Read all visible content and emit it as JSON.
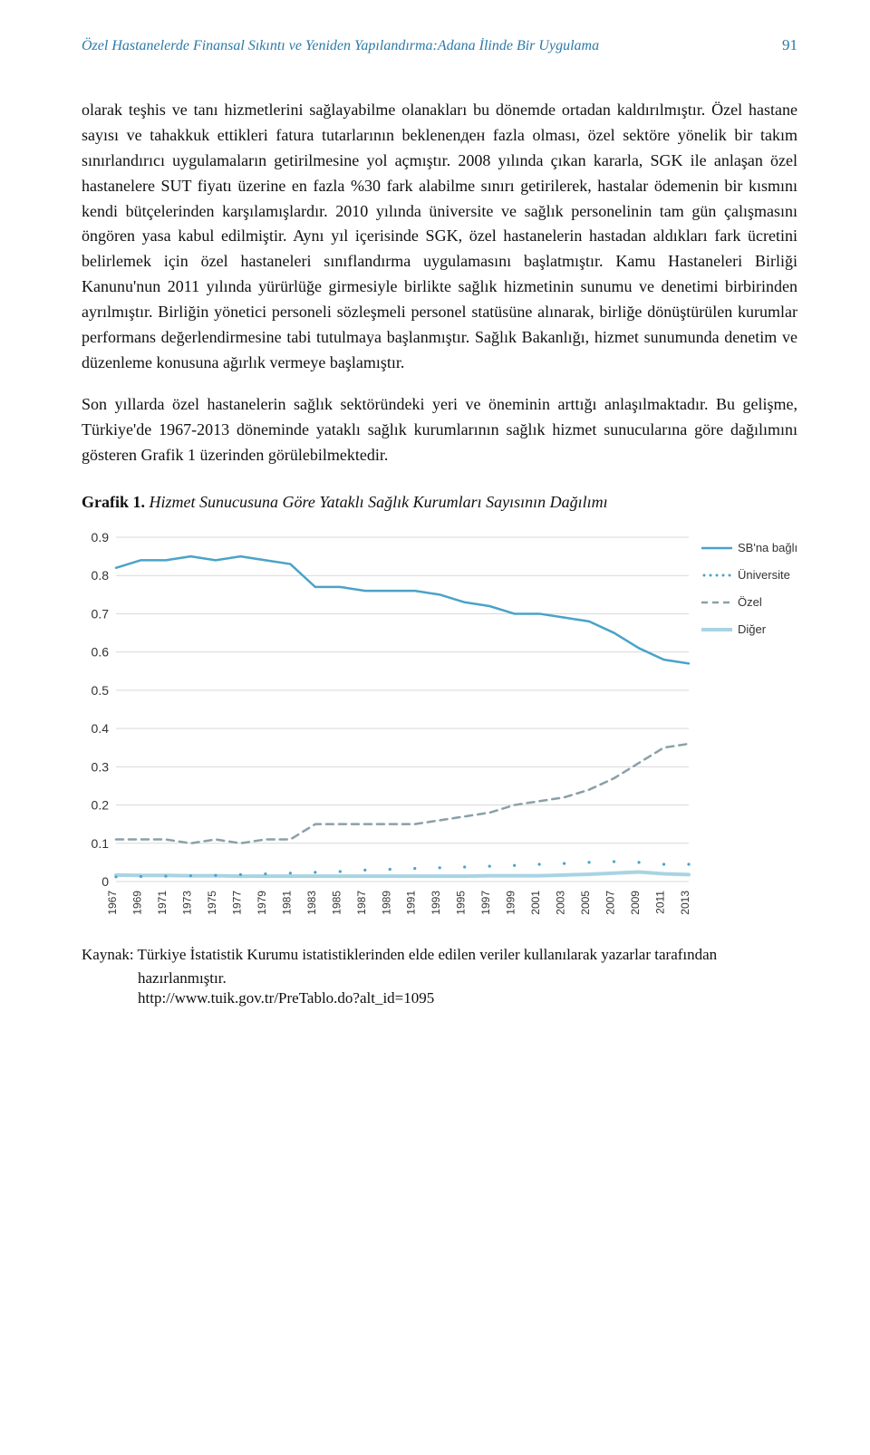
{
  "header": {
    "running_title": "Özel Hastanelerde Finansal Sıkıntı ve Yeniden Yapılandırma:Adana İlinde Bir Uygulama",
    "page_number": "91"
  },
  "paragraphs": {
    "p1": "olarak teşhis ve tanı hizmetlerini sağlayabilme olanakları bu dönemde ortadan kaldırılmıştır. Özel hastane sayısı ve tahakkuk ettikleri fatura tutarlarının beklenenден fazla olması, özel sektöre yönelik bir takım sınırlandırıcı uygulamaların getirilmesine yol açmıştır. 2008 yılında çıkan kararla, SGK ile anlaşan özel hastanelere SUT fiyatı üzerine en fazla %30 fark alabilme sınırı getirilerek, hastalar ödemenin bir kısmını kendi bütçelerinden karşılamışlardır. 2010 yılında üniversite ve sağlık personelinin tam gün çalışmasını öngören yasa kabul edilmiştir. Aynı yıl içerisinde SGK, özel hastanelerin hastadan aldıkları fark ücretini belirlemek için özel hastaneleri sınıflandırma uygulamasını başlatmıştır. Kamu Hastaneleri Birliği Kanunu'nun 2011 yılında yürürlüğe girmesiyle birlikte sağlık hizmetinin sunumu ve denetimi birbirinden ayrılmıştır. Birliğin yönetici personeli sözleşmeli personel statüsüne alınarak, birliğe dönüştürülen kurumlar performans değerlendirmesine tabi tutulmaya başlanmıştır. Sağlık Bakanlığı, hizmet sunumunda denetim ve düzenleme konusuna ağırlık vermeye başlamıştır.",
    "p2": "Son yıllarda özel hastanelerin sağlık sektöründeki yeri ve öneminin arttığı anlaşılmaktadır. Bu gelişme, Türkiye'de 1967-2013 döneminde yataklı sağlık kurumlarının sağlık hizmet sunucularına göre dağılımını gösteren Grafik 1 üzerinden görülebilmektedir."
  },
  "figure": {
    "label_bold": "Grafik 1.",
    "label_ital": "Hizmet Sunucusuna Göre Yataklı Sağlık Kurumları Sayısının Dağılımı"
  },
  "chart": {
    "type": "line",
    "background_color": "#ffffff",
    "grid_color": "#d9d9d9",
    "ylim": [
      0,
      0.9
    ],
    "ytick_step": 0.1,
    "yticks": [
      "0",
      "0.1",
      "0.2",
      "0.3",
      "0.4",
      "0.5",
      "0.6",
      "0.7",
      "0.8",
      "0.9"
    ],
    "x_years": [
      1967,
      1969,
      1971,
      1973,
      1975,
      1977,
      1979,
      1981,
      1983,
      1985,
      1987,
      1989,
      1991,
      1993,
      1995,
      1997,
      1999,
      2001,
      2003,
      2005,
      2007,
      2009,
      2011,
      2013
    ],
    "legend": [
      {
        "name": "SB'na bağlı",
        "color": "#4aa3c7",
        "style": "solid",
        "width": 2.5
      },
      {
        "name": "Üniversite",
        "color": "#4aa3c7",
        "style": "dotted",
        "width": 2
      },
      {
        "name": "Özel",
        "color": "#8aa0a8",
        "style": "dashed",
        "width": 2.5
      },
      {
        "name": "Diğer",
        "color": "#a8d4e3",
        "style": "solid",
        "width": 4
      }
    ],
    "label_fontsize": 13,
    "axis_fontsize": 14,
    "series": {
      "sb": [
        0.82,
        0.84,
        0.84,
        0.85,
        0.84,
        0.85,
        0.84,
        0.83,
        0.77,
        0.77,
        0.76,
        0.76,
        0.76,
        0.75,
        0.73,
        0.72,
        0.7,
        0.7,
        0.69,
        0.68,
        0.65,
        0.61,
        0.58,
        0.57
      ],
      "univ": [
        0.012,
        0.013,
        0.014,
        0.015,
        0.016,
        0.018,
        0.02,
        0.022,
        0.024,
        0.026,
        0.03,
        0.032,
        0.034,
        0.036,
        0.038,
        0.04,
        0.042,
        0.045,
        0.047,
        0.05,
        0.052,
        0.05,
        0.045,
        0.045
      ],
      "ozel": [
        0.11,
        0.11,
        0.11,
        0.1,
        0.11,
        0.1,
        0.11,
        0.11,
        0.15,
        0.15,
        0.15,
        0.15,
        0.15,
        0.16,
        0.17,
        0.18,
        0.2,
        0.21,
        0.22,
        0.24,
        0.27,
        0.31,
        0.35,
        0.36
      ],
      "diger": [
        0.017,
        0.016,
        0.016,
        0.015,
        0.015,
        0.014,
        0.014,
        0.014,
        0.014,
        0.014,
        0.014,
        0.014,
        0.014,
        0.014,
        0.014,
        0.015,
        0.015,
        0.015,
        0.017,
        0.019,
        0.022,
        0.025,
        0.02,
        0.018
      ]
    }
  },
  "source": {
    "label": "Kaynak:",
    "text": "Türkiye İstatistik Kurumu istatistiklerinden elde edilen veriler kullanılarak yazarlar tarafından hazırlanmıştır.",
    "url": "http://www.tuik.gov.tr/PreTablo.do?alt_id=1095"
  }
}
